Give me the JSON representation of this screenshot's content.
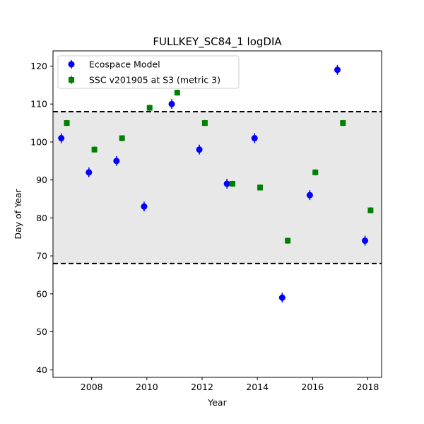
{
  "chart_data": {
    "type": "scatter",
    "title": "FULLKEY_SC84_1 logDIA",
    "xlabel": "Year",
    "ylabel": "Day of Year",
    "xlim": [
      2006.6,
      2018.5
    ],
    "ylim": [
      38,
      124
    ],
    "xticks": [
      2008,
      2010,
      2012,
      2014,
      2016,
      2018
    ],
    "yticks": [
      40,
      50,
      60,
      70,
      80,
      90,
      100,
      110,
      120
    ],
    "band": {
      "low": 68,
      "high": 108,
      "color": "#e8e8e8"
    },
    "legend_position": "top-left",
    "series": [
      {
        "name": "Ecospace Model",
        "marker": "circle",
        "color": "#0000ff",
        "x": [
          2006.9,
          2007.9,
          2008.9,
          2009.9,
          2010.9,
          2011.9,
          2012.9,
          2013.9,
          2014.9,
          2015.9,
          2016.9,
          2017.9
        ],
        "y": [
          101,
          92,
          95,
          83,
          110,
          98,
          89,
          101,
          59,
          86,
          119,
          74
        ],
        "err": [
          1.3,
          1.3,
          1.3,
          1.3,
          1.3,
          1.3,
          1.3,
          1.3,
          1.3,
          1.3,
          1.3,
          1.3
        ]
      },
      {
        "name": "SSC v201905 at S3 (metric 3)",
        "marker": "square",
        "color": "#008000",
        "x": [
          2007.1,
          2008.1,
          2009.1,
          2010.1,
          2011.1,
          2012.1,
          2013.1,
          2014.1,
          2015.1,
          2016.1,
          2017.1,
          2018.1
        ],
        "y": [
          105,
          98,
          101,
          109,
          113,
          105,
          89,
          88,
          74,
          92,
          105,
          82
        ],
        "err": [
          0.8,
          0.8,
          0.8,
          0.8,
          0.8,
          0.8,
          0.8,
          0.8,
          0.8,
          0.8,
          0.8,
          0.8
        ]
      }
    ]
  }
}
